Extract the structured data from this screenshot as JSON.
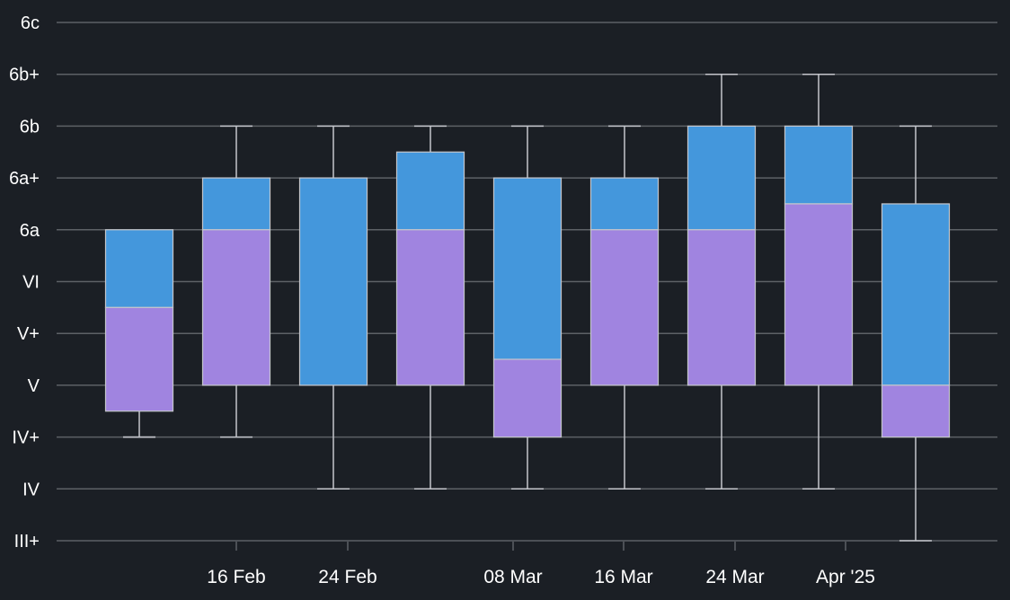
{
  "chart_data": {
    "type": "box",
    "y_categories": [
      "III+",
      "IV",
      "IV+",
      "V",
      "V+",
      "VI",
      "6a",
      "6a+",
      "6b",
      "6b+",
      "6c"
    ],
    "x_tick_labels": [
      "16 Feb",
      "24 Feb",
      "08 Mar",
      "16 Mar",
      "24 Mar",
      "Apr '25"
    ],
    "grid": true,
    "colors": {
      "background": "#1b1f25",
      "grid": "#5d6166",
      "lower_box": "#a084e0",
      "upper_box": "#4497dc",
      "whisker": "#c4c6cc"
    },
    "boxes": [
      {
        "min": "IV+",
        "q1": "IV+/V",
        "median": "V+/VI",
        "q3": "6a",
        "max": "IV+"
      },
      {
        "min": "IV+",
        "q1": "V",
        "median": "6a",
        "q3": "6a+",
        "max": "6b"
      },
      {
        "min": "IV",
        "q1": "V",
        "median": "V",
        "q3": "6a+",
        "max": "6b"
      },
      {
        "min": "IV",
        "q1": "V",
        "median": "6a",
        "q3": "6a+/6b",
        "max": "6b"
      },
      {
        "min": "IV",
        "q1": "IV+",
        "median": "V/V+",
        "q3": "6a+",
        "max": "6b"
      },
      {
        "min": "IV",
        "q1": "V",
        "median": "6a",
        "q3": "6a+",
        "max": "6b"
      },
      {
        "min": "IV",
        "q1": "V",
        "median": "6a",
        "q3": "6b",
        "max": "6b+"
      },
      {
        "min": "IV",
        "q1": "V",
        "median": "6a/6a+",
        "q3": "6b",
        "max": "6b+"
      },
      {
        "min": "III+",
        "q1": "IV+",
        "median": "V",
        "q3": "6a/6a+",
        "max": "6b"
      }
    ]
  }
}
